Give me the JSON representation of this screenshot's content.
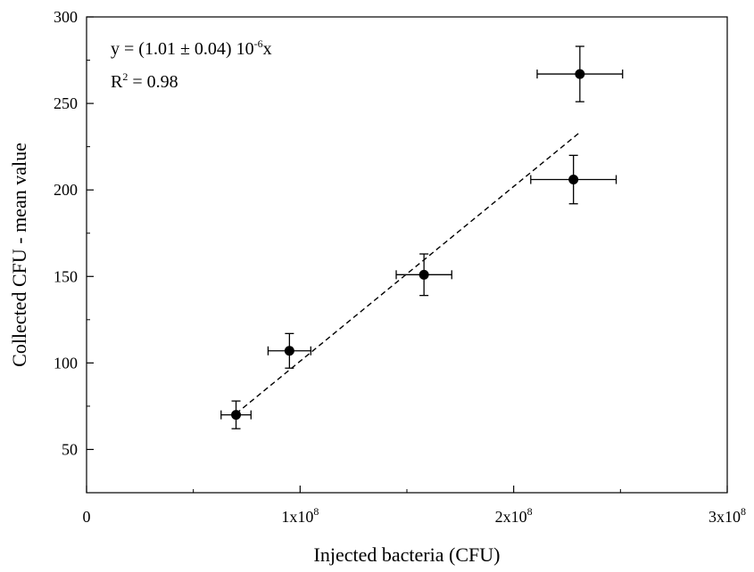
{
  "chart_data": {
    "type": "scatter",
    "title": "",
    "xlabel": "Injected bacteria (CFU)",
    "ylabel": "Collected CFU - mean value",
    "xlim": [
      0,
      300000000
    ],
    "ylim": [
      25,
      300
    ],
    "x_ticks": [
      {
        "value": 0,
        "base": "0",
        "exp": ""
      },
      {
        "value": 100000000,
        "base": "1x10",
        "exp": "8"
      },
      {
        "value": 200000000,
        "base": "2x10",
        "exp": "8"
      },
      {
        "value": 300000000,
        "base": "3x10",
        "exp": "8"
      }
    ],
    "y_ticks": [
      50,
      100,
      150,
      200,
      250,
      300
    ],
    "grid": false,
    "points": [
      {
        "x": 70000000,
        "y": 70,
        "xerr": 7000000,
        "yerr": 8
      },
      {
        "x": 95000000,
        "y": 107,
        "xerr": 10000000,
        "yerr": 10
      },
      {
        "x": 158000000,
        "y": 151,
        "xerr": 13000000,
        "yerr": 12
      },
      {
        "x": 228000000,
        "y": 206,
        "xerr": 20000000,
        "yerr": 14
      },
      {
        "x": 231000000,
        "y": 267,
        "xerr": 20000000,
        "yerr": 16
      }
    ],
    "fit": {
      "slope": 1.01e-06,
      "x_range": [
        70000000,
        231000000
      ],
      "style": "dashed",
      "equation": {
        "prefix": "y = (1.01 ± 0.04) 10",
        "exp": "-6",
        "suffix": "x"
      },
      "r2": {
        "base": "R",
        "exp": "2",
        "suffix": " = 0.98"
      }
    }
  }
}
